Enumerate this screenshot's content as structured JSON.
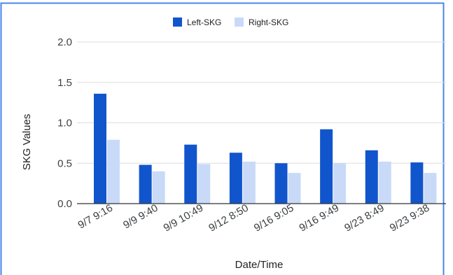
{
  "chart_data": {
    "type": "bar",
    "title": "",
    "xlabel": "Date/Time",
    "ylabel": "SKG Values",
    "ylim": [
      0,
      2.0
    ],
    "yticks": [
      "0.0",
      "0.5",
      "1.0",
      "1.5",
      "2.0"
    ],
    "ytick_values": [
      0,
      0.5,
      1.0,
      1.5,
      2.0
    ],
    "grid": true,
    "legend_position": "top-center",
    "categories": [
      "9/7 9:16",
      "9/9 9:40",
      "9/9 10:49",
      "9/12 8:50",
      "9/16 9:05",
      "9/16 9:49",
      "9/23 8:49",
      "9/23 9:38"
    ],
    "series": [
      {
        "name": "Left-SKG",
        "color": "#1155cc",
        "values": [
          1.36,
          0.48,
          0.73,
          0.63,
          0.5,
          0.92,
          0.66,
          0.51
        ]
      },
      {
        "name": "Right-SKG",
        "color": "#c9daf8",
        "values": [
          0.79,
          0.4,
          0.49,
          0.52,
          0.38,
          0.5,
          0.52,
          0.38
        ]
      }
    ]
  },
  "colors": {
    "frame_border": "#4a86e8",
    "gridline": "#dddddd",
    "baseline": "#333333"
  }
}
